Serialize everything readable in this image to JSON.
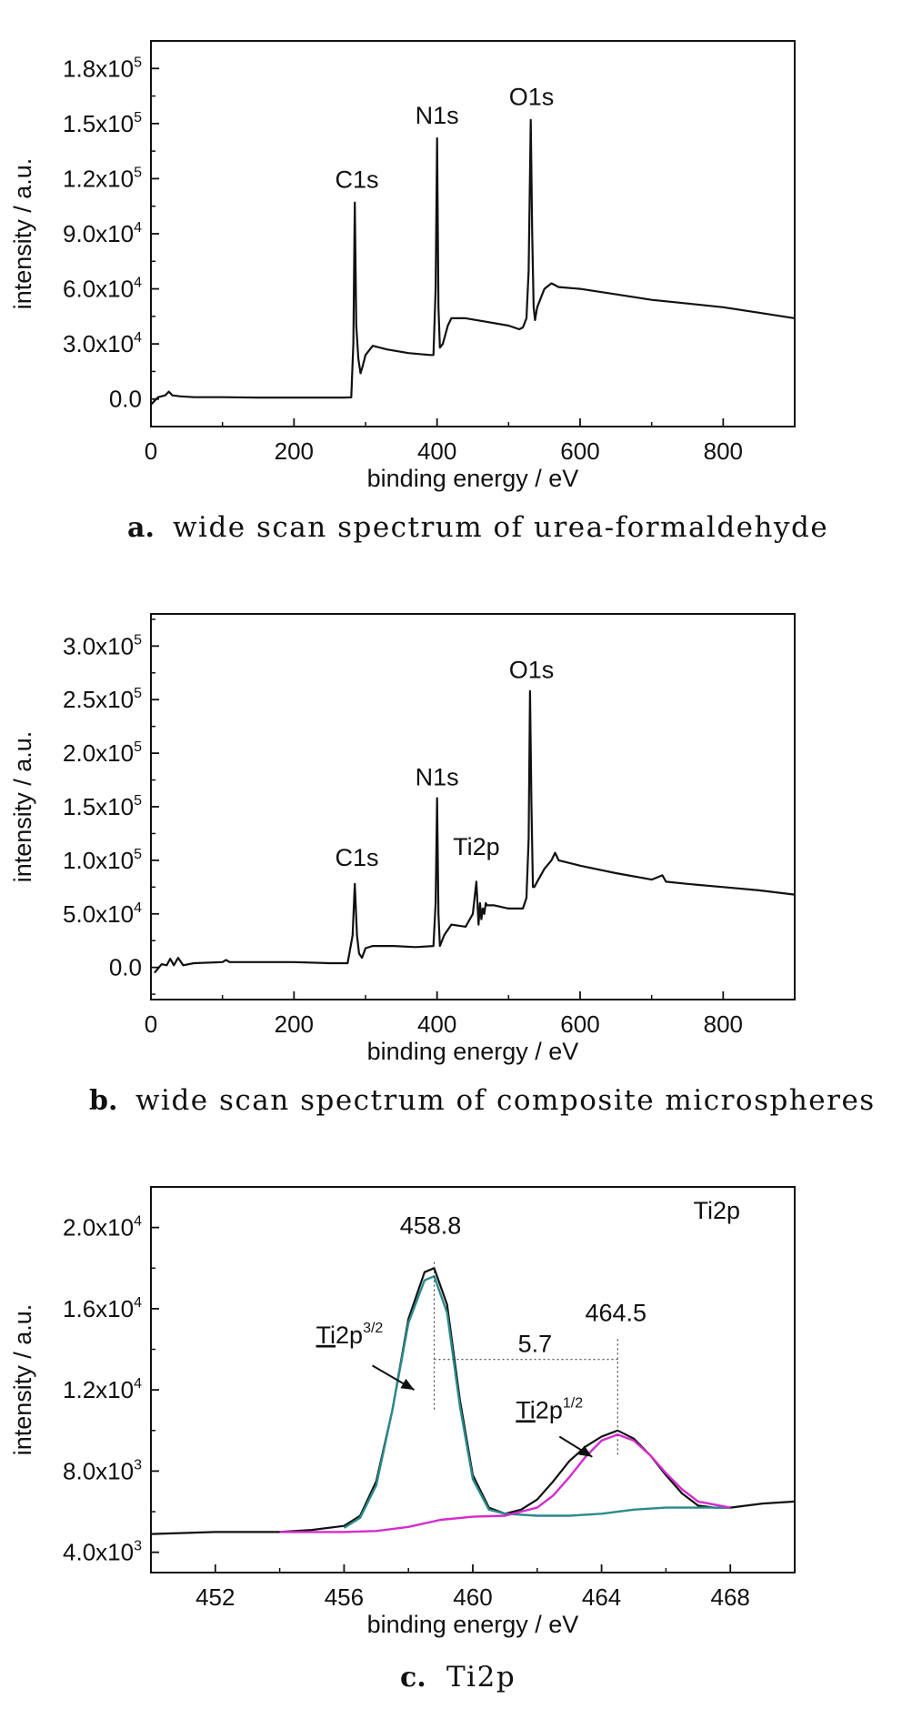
{
  "chart_data": [
    {
      "type": "line",
      "panel": "a.",
      "caption": "wide scan spectrum of urea-formaldehyde",
      "xlabel": "binding energy / eV",
      "ylabel": "intensity / a.u.",
      "xlim": [
        0,
        900
      ],
      "ylim": [
        -15000,
        195000
      ],
      "x_ticks": [
        0,
        200,
        400,
        600,
        800
      ],
      "x_tick_labels": [
        "0",
        "200",
        "400",
        "600",
        "800"
      ],
      "y_ticks": [
        0,
        30000,
        60000,
        90000,
        120000,
        150000,
        180000
      ],
      "y_tick_labels": [
        {
          "mant": "0.0",
          "exp": ""
        },
        {
          "mant": "3.0x10",
          "exp": "4"
        },
        {
          "mant": "6.0x10",
          "exp": "4"
        },
        {
          "mant": "9.0x10",
          "exp": "4"
        },
        {
          "mant": "1.2x10",
          "exp": "5"
        },
        {
          "mant": "1.5x10",
          "exp": "5"
        },
        {
          "mant": "1.8x10",
          "exp": "5"
        }
      ],
      "annotations": [
        {
          "text": "C1s",
          "x": 288,
          "y": 115000
        },
        {
          "text": "N1s",
          "x": 400,
          "y": 150000
        },
        {
          "text": "O1s",
          "x": 532,
          "y": 160000
        }
      ],
      "series": [
        {
          "color": "#111111",
          "x": [
            0,
            10,
            20,
            25,
            30,
            40,
            60,
            100,
            150,
            200,
            250,
            270,
            280,
            283,
            285,
            287,
            290,
            293,
            296,
            300,
            310,
            330,
            360,
            390,
            395,
            398,
            400,
            402,
            404,
            408,
            415,
            420,
            440,
            470,
            500,
            515,
            520,
            525,
            528,
            531,
            533,
            535,
            537,
            540,
            550,
            560,
            570,
            600,
            650,
            700,
            750,
            800,
            850,
            900
          ],
          "y": [
            -3000,
            1000,
            2000,
            4000,
            2000,
            1500,
            1000,
            1000,
            800,
            800,
            800,
            800,
            900,
            30000,
            107000,
            40000,
            22000,
            14000,
            18000,
            24000,
            29000,
            27000,
            25000,
            24000,
            24000,
            60000,
            142000,
            50000,
            28000,
            30000,
            40000,
            44000,
            44000,
            42000,
            40000,
            38000,
            39000,
            44000,
            70000,
            152000,
            90000,
            50000,
            43000,
            50000,
            60000,
            63000,
            61000,
            60000,
            57000,
            54000,
            52000,
            50000,
            47000,
            44000
          ]
        }
      ]
    },
    {
      "type": "line",
      "panel": "b.",
      "caption": "wide scan spectrum of composite microspheres",
      "xlabel": "binding energy / eV",
      "ylabel": "intensity / a.u.",
      "xlim": [
        0,
        900
      ],
      "ylim": [
        -30000,
        330000
      ],
      "x_ticks": [
        0,
        200,
        400,
        600,
        800
      ],
      "x_tick_labels": [
        "0",
        "200",
        "400",
        "600",
        "800"
      ],
      "y_ticks": [
        0,
        50000,
        100000,
        150000,
        200000,
        250000,
        300000
      ],
      "y_tick_labels": [
        {
          "mant": "0.0",
          "exp": ""
        },
        {
          "mant": "5.0x10",
          "exp": "4"
        },
        {
          "mant": "1.0x10",
          "exp": "5"
        },
        {
          "mant": "1.5x10",
          "exp": "5"
        },
        {
          "mant": "2.0x10",
          "exp": "5"
        },
        {
          "mant": "2.5x10",
          "exp": "5"
        },
        {
          "mant": "3.0x10",
          "exp": "5"
        }
      ],
      "annotations": [
        {
          "text": "C1s",
          "x": 288,
          "y": 95000
        },
        {
          "text": "N1s",
          "x": 400,
          "y": 170000
        },
        {
          "text": "Ti2p",
          "x": 455,
          "y": 105000
        },
        {
          "text": "O1s",
          "x": 532,
          "y": 270000
        }
      ],
      "series": [
        {
          "color": "#111111",
          "x": [
            5,
            15,
            22,
            27,
            32,
            38,
            45,
            60,
            100,
            105,
            110,
            150,
            200,
            250,
            275,
            282,
            285,
            288,
            291,
            295,
            300,
            310,
            340,
            370,
            395,
            398,
            400,
            402,
            404,
            410,
            420,
            440,
            450,
            455,
            458,
            460,
            462,
            464,
            466,
            468,
            470,
            480,
            500,
            520,
            525,
            528,
            530,
            532,
            534,
            536,
            540,
            550,
            560,
            565,
            570,
            600,
            650,
            700,
            715,
            720,
            750,
            800,
            850,
            900
          ],
          "y": [
            -5000,
            3000,
            2000,
            8000,
            2000,
            9000,
            2000,
            4000,
            5000,
            7000,
            5000,
            5000,
            5000,
            4000,
            4000,
            30000,
            78000,
            30000,
            13000,
            9000,
            18000,
            20000,
            20000,
            19000,
            20000,
            60000,
            158000,
            50000,
            20000,
            30000,
            40000,
            38000,
            50000,
            80000,
            40000,
            60000,
            45000,
            55000,
            50000,
            60000,
            58000,
            58000,
            55000,
            55000,
            65000,
            120000,
            258000,
            150000,
            75000,
            75000,
            80000,
            92000,
            100000,
            107000,
            100000,
            95000,
            88000,
            82000,
            86000,
            80000,
            78000,
            75000,
            72000,
            68000
          ]
        }
      ]
    },
    {
      "type": "line",
      "panel": "c.",
      "caption": "Ti2p",
      "xlabel": "binding energy / eV",
      "ylabel": "intensity / a.u.",
      "corner_label": "Ti2p",
      "xlim": [
        450,
        470
      ],
      "ylim": [
        3000,
        22000
      ],
      "x_ticks": [
        452,
        456,
        460,
        464,
        468
      ],
      "x_tick_labels": [
        "452",
        "456",
        "460",
        "464",
        "468"
      ],
      "y_ticks": [
        4000,
        8000,
        12000,
        16000,
        20000
      ],
      "y_tick_labels": [
        {
          "mant": "4.0x10",
          "exp": "3"
        },
        {
          "mant": "8.0x10",
          "exp": "3"
        },
        {
          "mant": "1.2x10",
          "exp": "4"
        },
        {
          "mant": "1.6x10",
          "exp": "4"
        },
        {
          "mant": "2.0x10",
          "exp": "4"
        }
      ],
      "peaks": [
        {
          "value_label": "458.8",
          "x": 458.8,
          "component": "Ti2p",
          "sup": "3/2"
        },
        {
          "value_label": "464.5",
          "x": 464.5,
          "component": "Ti2p",
          "sup": "1/2"
        }
      ],
      "splitting": {
        "label": "5.7",
        "y": 13500
      },
      "series": [
        {
          "color": "#111111",
          "x": [
            450,
            452,
            454,
            455,
            456,
            456.5,
            457,
            457.5,
            458,
            458.5,
            458.8,
            459.2,
            459.6,
            460,
            460.5,
            461,
            461.5,
            462,
            462.5,
            463,
            463.5,
            464,
            464.5,
            465,
            465.5,
            466,
            466.5,
            467,
            467.5,
            468,
            469,
            470
          ],
          "y": [
            4900,
            5000,
            5000,
            5100,
            5300,
            5800,
            7500,
            11000,
            15500,
            17800,
            18000,
            16200,
            11500,
            7800,
            6200,
            5900,
            6100,
            6600,
            7500,
            8500,
            9200,
            9700,
            10000,
            9600,
            8800,
            7800,
            6900,
            6300,
            6200,
            6200,
            6400,
            6500
          ]
        },
        {
          "color": "#2b8a8a",
          "x": [
            456,
            456.5,
            457,
            457.5,
            458,
            458.5,
            458.8,
            459.2,
            459.6,
            460,
            460.5,
            461,
            462,
            463,
            464,
            465,
            466,
            467,
            468
          ],
          "y": [
            5200,
            5700,
            7300,
            11000,
            15300,
            17400,
            17600,
            15800,
            11200,
            7600,
            6100,
            5900,
            5800,
            5800,
            5900,
            6100,
            6200,
            6200,
            6200
          ]
        },
        {
          "color": "#d62ad0",
          "x": [
            454,
            456,
            457,
            458,
            459,
            460,
            461,
            462,
            462.5,
            463,
            463.5,
            464,
            464.5,
            465,
            465.5,
            466,
            466.5,
            467,
            468
          ],
          "y": [
            5000,
            5000,
            5050,
            5250,
            5600,
            5750,
            5800,
            6200,
            6800,
            7700,
            8700,
            9500,
            9800,
            9500,
            8800,
            7900,
            7100,
            6500,
            6200
          ]
        }
      ]
    }
  ]
}
